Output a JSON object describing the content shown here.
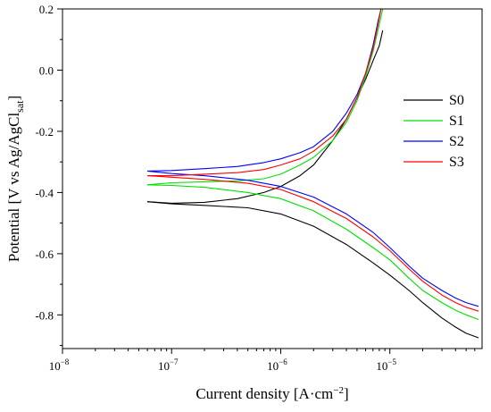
{
  "chart_data": {
    "type": "line",
    "xlabel": "Current density [A·cm⁻²]",
    "xlabel_main": "Current density [A·cm",
    "xlabel_sup": "−2",
    "xlabel_end": "]",
    "ylabel": "Potential [V vs Ag/AgCl sat]",
    "ylabel_main": "Potential [V vs Ag/AgCl",
    "ylabel_sub": "sat",
    "ylabel_end": "]",
    "x_scale": "log",
    "xlim": [
      1e-08,
      7e-05
    ],
    "ylim": [
      -0.91,
      0.2
    ],
    "x_ticks": [
      {
        "value": 1e-08,
        "base": "10",
        "exp": "−8"
      },
      {
        "value": 1e-07,
        "base": "10",
        "exp": "−7"
      },
      {
        "value": 1e-06,
        "base": "10",
        "exp": "−6"
      },
      {
        "value": 1e-05,
        "base": "10",
        "exp": "−5"
      }
    ],
    "y_ticks": [
      {
        "value": 0.2,
        "label": "0.2"
      },
      {
        "value": 0.0,
        "label": "0.0"
      },
      {
        "value": -0.2,
        "label": "-0.2"
      },
      {
        "value": -0.4,
        "label": "-0.4"
      },
      {
        "value": -0.6,
        "label": "-0.6"
      },
      {
        "value": -0.8,
        "label": "-0.8"
      }
    ],
    "grid": false,
    "legend_position": "right",
    "series": [
      {
        "name": "S0",
        "color": "#000000",
        "anodic": [
          [
            6e-08,
            -0.43
          ],
          [
            1e-07,
            -0.435
          ],
          [
            2e-07,
            -0.432
          ],
          [
            4e-07,
            -0.42
          ],
          [
            7e-07,
            -0.4
          ],
          [
            1e-06,
            -0.38
          ],
          [
            1.5e-06,
            -0.345
          ],
          [
            2e-06,
            -0.31
          ],
          [
            3e-06,
            -0.23
          ],
          [
            4e-06,
            -0.16
          ],
          [
            5e-06,
            -0.09
          ],
          [
            6e-06,
            -0.03
          ],
          [
            7e-06,
            0.03
          ],
          [
            8e-06,
            0.08
          ],
          [
            8.6e-06,
            0.13
          ]
        ],
        "cathodic": [
          [
            6e-08,
            -0.43
          ],
          [
            1e-07,
            -0.437
          ],
          [
            2e-07,
            -0.442
          ],
          [
            5e-07,
            -0.45
          ],
          [
            1e-06,
            -0.47
          ],
          [
            2e-06,
            -0.51
          ],
          [
            4e-06,
            -0.57
          ],
          [
            7e-06,
            -0.63
          ],
          [
            1e-05,
            -0.67
          ],
          [
            1.5e-05,
            -0.72
          ],
          [
            2e-05,
            -0.76
          ],
          [
            3e-05,
            -0.81
          ],
          [
            4e-05,
            -0.84
          ],
          [
            5e-05,
            -0.86
          ],
          [
            6.5e-05,
            -0.875
          ]
        ]
      },
      {
        "name": "S1",
        "color": "#00e000",
        "anodic": [
          [
            6e-08,
            -0.375
          ],
          [
            1e-07,
            -0.368
          ],
          [
            2e-07,
            -0.365
          ],
          [
            4e-07,
            -0.362
          ],
          [
            7e-07,
            -0.355
          ],
          [
            1e-06,
            -0.34
          ],
          [
            1.5e-06,
            -0.31
          ],
          [
            2e-06,
            -0.285
          ],
          [
            3e-06,
            -0.23
          ],
          [
            4e-06,
            -0.17
          ],
          [
            5e-06,
            -0.1
          ],
          [
            6e-06,
            -0.02
          ],
          [
            7e-06,
            0.06
          ],
          [
            8e-06,
            0.15
          ],
          [
            8.6e-06,
            0.2
          ]
        ],
        "cathodic": [
          [
            6e-08,
            -0.375
          ],
          [
            1e-07,
            -0.377
          ],
          [
            2e-07,
            -0.383
          ],
          [
            5e-07,
            -0.4
          ],
          [
            1e-06,
            -0.42
          ],
          [
            2e-06,
            -0.46
          ],
          [
            4e-06,
            -0.52
          ],
          [
            7e-06,
            -0.58
          ],
          [
            1e-05,
            -0.62
          ],
          [
            1.5e-05,
            -0.68
          ],
          [
            2e-05,
            -0.72
          ],
          [
            3e-05,
            -0.76
          ],
          [
            4e-05,
            -0.785
          ],
          [
            5e-05,
            -0.8
          ],
          [
            6.5e-05,
            -0.815
          ]
        ]
      },
      {
        "name": "S2",
        "color": "#0000ff",
        "anodic": [
          [
            6e-08,
            -0.33
          ],
          [
            1e-07,
            -0.328
          ],
          [
            2e-07,
            -0.322
          ],
          [
            4e-07,
            -0.315
          ],
          [
            7e-07,
            -0.302
          ],
          [
            1e-06,
            -0.29
          ],
          [
            1.5e-06,
            -0.27
          ],
          [
            2e-06,
            -0.25
          ],
          [
            3e-06,
            -0.2
          ],
          [
            4e-06,
            -0.14
          ],
          [
            5e-06,
            -0.08
          ],
          [
            6e-06,
            -0.01
          ],
          [
            7e-06,
            0.08
          ],
          [
            7.8e-06,
            0.16
          ],
          [
            8.3e-06,
            0.2
          ]
        ],
        "cathodic": [
          [
            6e-08,
            -0.33
          ],
          [
            1e-07,
            -0.338
          ],
          [
            2e-07,
            -0.345
          ],
          [
            5e-07,
            -0.36
          ],
          [
            1e-06,
            -0.38
          ],
          [
            2e-06,
            -0.415
          ],
          [
            4e-06,
            -0.47
          ],
          [
            7e-06,
            -0.53
          ],
          [
            1e-05,
            -0.58
          ],
          [
            1.5e-05,
            -0.64
          ],
          [
            2e-05,
            -0.68
          ],
          [
            3e-05,
            -0.72
          ],
          [
            4e-05,
            -0.745
          ],
          [
            5e-05,
            -0.76
          ],
          [
            6.5e-05,
            -0.772
          ]
        ]
      },
      {
        "name": "S3",
        "color": "#ff0000",
        "anodic": [
          [
            6e-08,
            -0.345
          ],
          [
            1e-07,
            -0.345
          ],
          [
            2e-07,
            -0.34
          ],
          [
            4e-07,
            -0.335
          ],
          [
            7e-07,
            -0.325
          ],
          [
            1e-06,
            -0.31
          ],
          [
            1.5e-06,
            -0.29
          ],
          [
            2e-06,
            -0.265
          ],
          [
            3e-06,
            -0.215
          ],
          [
            4e-06,
            -0.16
          ],
          [
            5e-06,
            -0.09
          ],
          [
            6e-06,
            -0.01
          ],
          [
            7e-06,
            0.07
          ],
          [
            7.8e-06,
            0.15
          ],
          [
            8.3e-06,
            0.2
          ]
        ],
        "cathodic": [
          [
            6e-08,
            -0.345
          ],
          [
            1e-07,
            -0.35
          ],
          [
            2e-07,
            -0.357
          ],
          [
            5e-07,
            -0.37
          ],
          [
            1e-06,
            -0.39
          ],
          [
            2e-06,
            -0.43
          ],
          [
            4e-06,
            -0.485
          ],
          [
            7e-06,
            -0.545
          ],
          [
            1e-05,
            -0.59
          ],
          [
            1.5e-05,
            -0.65
          ],
          [
            2e-05,
            -0.69
          ],
          [
            3e-05,
            -0.735
          ],
          [
            4e-05,
            -0.76
          ],
          [
            5e-05,
            -0.775
          ],
          [
            6.5e-05,
            -0.788
          ]
        ]
      }
    ]
  }
}
